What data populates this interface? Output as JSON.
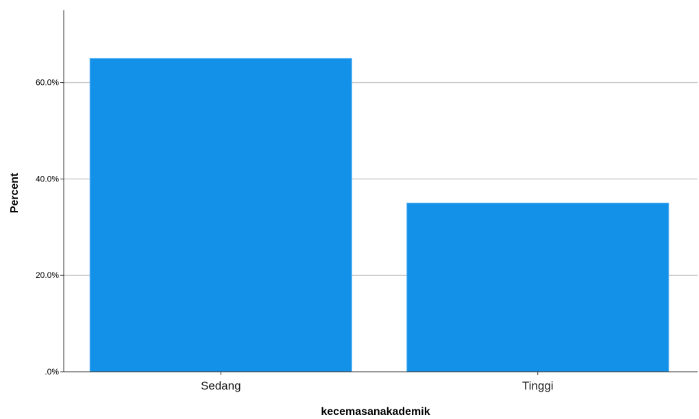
{
  "chart_data": {
    "type": "bar",
    "categories": [
      "Sedang",
      "Tinggi"
    ],
    "values": [
      65,
      35
    ],
    "xlabel": "kecemasanakademik",
    "ylabel": "Percent",
    "ylim": [
      0,
      75
    ],
    "yticks": [
      0,
      20,
      40,
      60
    ],
    "ytick_labels": [
      ".0%",
      "20.0%",
      "40.0%",
      "60.0%"
    ],
    "grid": true,
    "legend": "none",
    "bar_color": "#1390E8",
    "grid_color": "#CCCCCC"
  }
}
